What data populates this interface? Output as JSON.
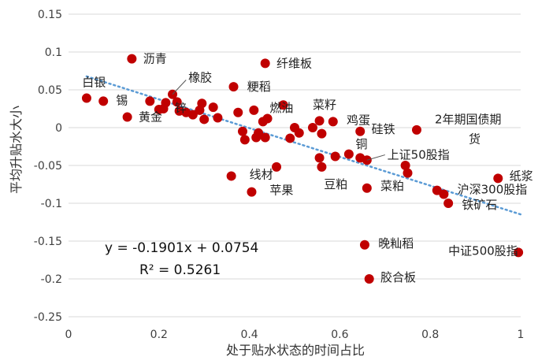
{
  "chart_data": {
    "type": "scatter",
    "xlabel": "处于贴水状态的时间占比",
    "ylabel": "平均升贴水大小",
    "xlim": [
      0,
      1
    ],
    "ylim": [
      -0.25,
      0.15
    ],
    "xticks": [
      0,
      0.2,
      0.4,
      0.6,
      0.8,
      1
    ],
    "xtick_labels": [
      "0",
      "0.2",
      "0.4",
      "0.6",
      "0.8",
      "1"
    ],
    "yticks": [
      0.15,
      0.1,
      0.05,
      0,
      -0.05,
      -0.1,
      -0.15,
      -0.2,
      -0.25
    ],
    "ytick_labels": [
      "0.15",
      "0.1",
      "0.05",
      "0",
      "-0.05",
      "-0.1",
      "-0.15",
      "-0.2",
      "-0.25"
    ],
    "grid": "horizontal",
    "marker_color": "#c00000",
    "trend_color": "#5b9bd5",
    "trendline": {
      "slope": -0.1901,
      "intercept": 0.0754,
      "equation": "y = -0.1901x + 0.0754",
      "r2": "R² = 0.5261",
      "x_range": [
        0.04,
        1.0
      ]
    },
    "points": [
      {
        "x": 0.04,
        "y": 0.039
      },
      {
        "x": 0.077,
        "y": 0.035
      },
      {
        "x": 0.13,
        "y": 0.014
      },
      {
        "x": 0.14,
        "y": 0.091
      },
      {
        "x": 0.18,
        "y": 0.035
      },
      {
        "x": 0.2,
        "y": 0.024
      },
      {
        "x": 0.21,
        "y": 0.025
      },
      {
        "x": 0.215,
        "y": 0.033
      },
      {
        "x": 0.23,
        "y": 0.044
      },
      {
        "x": 0.24,
        "y": 0.034
      },
      {
        "x": 0.245,
        "y": 0.022
      },
      {
        "x": 0.26,
        "y": 0.02
      },
      {
        "x": 0.275,
        "y": 0.017
      },
      {
        "x": 0.29,
        "y": 0.023
      },
      {
        "x": 0.295,
        "y": 0.032
      },
      {
        "x": 0.3,
        "y": 0.011
      },
      {
        "x": 0.32,
        "y": 0.027
      },
      {
        "x": 0.33,
        "y": 0.013
      },
      {
        "x": 0.365,
        "y": 0.054
      },
      {
        "x": 0.375,
        "y": 0.02
      },
      {
        "x": 0.385,
        "y": -0.005
      },
      {
        "x": 0.39,
        "y": -0.016
      },
      {
        "x": 0.41,
        "y": 0.023
      },
      {
        "x": 0.415,
        "y": -0.013
      },
      {
        "x": 0.42,
        "y": -0.007
      },
      {
        "x": 0.43,
        "y": 0.008
      },
      {
        "x": 0.435,
        "y": -0.013
      },
      {
        "x": 0.44,
        "y": 0.012
      },
      {
        "x": 0.435,
        "y": 0.085
      },
      {
        "x": 0.475,
        "y": 0.03
      },
      {
        "x": 0.49,
        "y": -0.014
      },
      {
        "x": 0.5,
        "y": 0.0
      },
      {
        "x": 0.51,
        "y": -0.007
      },
      {
        "x": 0.54,
        "y": 0.0
      },
      {
        "x": 0.555,
        "y": 0.009
      },
      {
        "x": 0.56,
        "y": -0.008
      },
      {
        "x": 0.585,
        "y": 0.008
      },
      {
        "x": 0.59,
        "y": -0.038
      },
      {
        "x": 0.62,
        "y": -0.035
      },
      {
        "x": 0.645,
        "y": -0.04
      },
      {
        "x": 0.645,
        "y": -0.005
      },
      {
        "x": 0.66,
        "y": -0.043
      },
      {
        "x": 0.66,
        "y": -0.08
      },
      {
        "x": 0.555,
        "y": -0.04
      },
      {
        "x": 0.56,
        "y": -0.052
      },
      {
        "x": 0.36,
        "y": -0.064
      },
      {
        "x": 0.46,
        "y": -0.052
      },
      {
        "x": 0.405,
        "y": -0.085
      },
      {
        "x": 0.655,
        "y": -0.155
      },
      {
        "x": 0.665,
        "y": -0.2
      },
      {
        "x": 0.745,
        "y": -0.05
      },
      {
        "x": 0.75,
        "y": -0.06
      },
      {
        "x": 0.77,
        "y": -0.003
      },
      {
        "x": 0.815,
        "y": -0.083
      },
      {
        "x": 0.83,
        "y": -0.088
      },
      {
        "x": 0.84,
        "y": -0.1
      },
      {
        "x": 0.95,
        "y": -0.067
      },
      {
        "x": 0.995,
        "y": -0.165
      }
    ],
    "annotations": [
      {
        "text": "沥青",
        "x": 0.165,
        "y": 0.091
      },
      {
        "text": "白银",
        "x": 0.03,
        "y": 0.06
      },
      {
        "text": "锡",
        "x": 0.105,
        "y": 0.036
      },
      {
        "text": "黄金",
        "x": 0.155,
        "y": 0.014
      },
      {
        "text": "锌",
        "x": 0.235,
        "y": 0.026
      },
      {
        "text": "橡胶",
        "x": 0.265,
        "y": 0.066
      },
      {
        "text": "粳稻",
        "x": 0.395,
        "y": 0.054
      },
      {
        "text": "纤维板",
        "x": 0.46,
        "y": 0.085
      },
      {
        "text": "燃油",
        "x": 0.445,
        "y": 0.026
      },
      {
        "text": "菜籽",
        "x": 0.54,
        "y": 0.03
      },
      {
        "text": "鸡蛋",
        "x": 0.615,
        "y": 0.01
      },
      {
        "text": "硅铁",
        "x": 0.67,
        "y": -0.002
      },
      {
        "text": "铜",
        "x": 0.635,
        "y": -0.022
      },
      {
        "text": "上证50股指",
        "x": 0.705,
        "y": -0.036
      },
      {
        "text": "线材",
        "x": 0.4,
        "y": -0.062
      },
      {
        "text": "苹果",
        "x": 0.445,
        "y": -0.083
      },
      {
        "text": "豆粕",
        "x": 0.565,
        "y": -0.075
      },
      {
        "text": "菜粕",
        "x": 0.69,
        "y": -0.077
      },
      {
        "text": "2年期国债期",
        "x": 0.81,
        "y": 0.011
      },
      {
        "text": "货",
        "x": 0.885,
        "y": -0.015
      },
      {
        "text": "纸浆",
        "x": 0.975,
        "y": -0.064
      },
      {
        "text": "沪深300股指",
        "x": 0.86,
        "y": -0.082
      },
      {
        "text": "铁矿石",
        "x": 0.87,
        "y": -0.102
      },
      {
        "text": "晚籼稻",
        "x": 0.685,
        "y": -0.153
      },
      {
        "text": "中证500股指",
        "x": 0.84,
        "y": -0.163
      },
      {
        "text": "胶合板",
        "x": 0.69,
        "y": -0.198
      }
    ]
  }
}
